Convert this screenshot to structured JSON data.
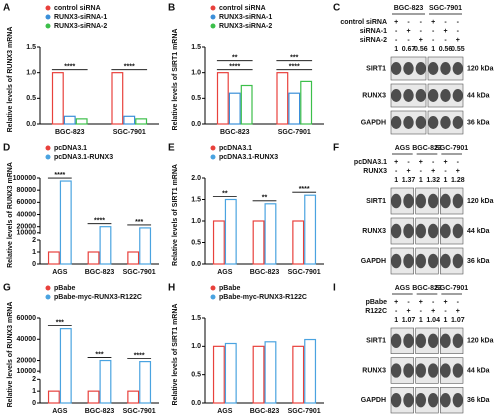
{
  "chart_data": [
    {
      "type": "bar",
      "panel": "A",
      "ylabel": "Relative levels of RUNX3 mRNA",
      "categories": [
        "BGC-823",
        "SGC-7901"
      ],
      "series": [
        {
          "name": "control siRNA",
          "color": "#e8413c",
          "values": [
            1,
            1
          ]
        },
        {
          "name": "RUNX3-siRNA-1",
          "color": "#3b8fd9",
          "values": [
            0.15,
            0.15
          ]
        },
        {
          "name": "RUNX3-siRNA-2",
          "color": "#3cbf4a",
          "values": [
            0.1,
            0.1
          ]
        }
      ],
      "ylim": [
        0,
        1.5
      ],
      "yticks": [
        {
          "value": 0,
          "label": "0.0"
        },
        0.5,
        {
          "value": 1,
          "label": "1.0"
        },
        1.5
      ],
      "annotations": [
        [
          "****"
        ],
        [
          "****"
        ]
      ]
    },
    {
      "type": "bar",
      "panel": "B",
      "ylabel": "Relative levels of SIRT1 mRNA",
      "categories": [
        "BGC-823",
        "SGC-7901"
      ],
      "series": [
        {
          "name": "control siRNA",
          "color": "#e8413c",
          "values": [
            1,
            1
          ]
        },
        {
          "name": "RUNX3-siRNA-1",
          "color": "#3b8fd9",
          "values": [
            0.6,
            0.6
          ]
        },
        {
          "name": "RUNX3-siRNA-2",
          "color": "#3cbf4a",
          "values": [
            0.75,
            0.83
          ]
        }
      ],
      "ylim": [
        0,
        1.5
      ],
      "yticks": [
        {
          "value": 0,
          "label": "0.0"
        },
        0.5,
        {
          "value": 1,
          "label": "1.0"
        },
        1.5
      ],
      "annotations": [
        [
          "**",
          "****"
        ],
        [
          "***",
          "****"
        ]
      ]
    },
    {
      "type": "bar",
      "panel": "D",
      "ylabel": "Relative levels of RUNX3 mRNA",
      "categories": [
        "AGS",
        "BGC-823",
        "SGC-7901"
      ],
      "series": [
        {
          "name": "pcDNA3.1",
          "color": "#e8413c",
          "values": [
            1,
            1,
            1
          ]
        },
        {
          "name": "pcDNA3.1-RUNX3",
          "color": "#4aa3e0",
          "values": [
            95000,
            20000,
            18000
          ]
        }
      ],
      "ylim_segments": [
        {
          "ylim": [
            0,
            2
          ],
          "yticks": [
            0,
            1,
            2
          ]
        },
        {
          "ylim": [
            8000,
            100000
          ],
          "yticks": [
            10000,
            20000,
            40000,
            60000,
            80000,
            100000
          ]
        }
      ],
      "annotations": [
        [
          "****"
        ],
        [
          "****"
        ],
        [
          "***"
        ]
      ]
    },
    {
      "type": "bar",
      "panel": "E",
      "ylabel": "Relative levels of SIRT1 mRNA",
      "categories": [
        "AGS",
        "BGC-823",
        "SGC-7901"
      ],
      "series": [
        {
          "name": "pcDNA3.1",
          "color": "#e8413c",
          "values": [
            1,
            1,
            1
          ]
        },
        {
          "name": "pcDNA3.1-RUNX3",
          "color": "#4aa3e0",
          "values": [
            1.5,
            1.4,
            1.6
          ]
        }
      ],
      "ylim": [
        0,
        2
      ],
      "yticks": [
        {
          "value": 0,
          "label": "0.0"
        },
        0.5,
        {
          "value": 1,
          "label": "1.0"
        },
        1.5,
        {
          "value": 2,
          "label": "2.0"
        }
      ],
      "annotations": [
        [
          "**"
        ],
        [
          "**"
        ],
        [
          "****"
        ]
      ]
    },
    {
      "type": "bar",
      "panel": "G",
      "ylabel": "Relative levels of RUNX3 mRNA",
      "categories": [
        "AGS",
        "BGC-823",
        "SGC-7901"
      ],
      "series": [
        {
          "name": "pBabe",
          "color": "#e8413c",
          "values": [
            1,
            1,
            1
          ]
        },
        {
          "name": "pBabe-myc-RUNX3-R122C",
          "color": "#4aa3e0",
          "values": [
            50000,
            20000,
            19000
          ]
        }
      ],
      "ylim_segments": [
        {
          "ylim": [
            0,
            2
          ],
          "yticks": [
            0,
            1,
            2
          ]
        },
        {
          "ylim": [
            8000,
            60000
          ],
          "yticks": [
            10000,
            20000,
            40000,
            60000
          ]
        }
      ],
      "annotations": [
        [
          "***"
        ],
        [
          "***"
        ],
        [
          "****"
        ]
      ]
    },
    {
      "type": "bar",
      "panel": "H",
      "ylabel": "Relative levels of SIRT1 mRNA",
      "categories": [
        "AGS",
        "BGC-823",
        "SGC-7901"
      ],
      "series": [
        {
          "name": "pBabe",
          "color": "#e8413c",
          "values": [
            1,
            1,
            1
          ]
        },
        {
          "name": "pBabe-myc-RUNX3-R122C",
          "color": "#4aa3e0",
          "values": [
            1.05,
            1.08,
            1.12
          ]
        }
      ],
      "ylim": [
        0,
        1.5
      ],
      "yticks": [
        {
          "value": 0,
          "label": "0.0"
        },
        0.5,
        {
          "value": 1,
          "label": "1.0"
        },
        1.5
      ]
    }
  ],
  "blots": [
    {
      "panel": "C",
      "groups": [
        "BGC-823",
        "SGC-7901"
      ],
      "conditions": [
        {
          "label": "control siRNA",
          "marks": [
            "+",
            "-",
            "-",
            "+",
            "-",
            "-"
          ]
        },
        {
          "label": "siRNA-1",
          "marks": [
            "-",
            "+",
            "-",
            "-",
            "+",
            "-"
          ]
        },
        {
          "label": "siRNA-2",
          "marks": [
            "-",
            "-",
            "+",
            "-",
            "-",
            "+"
          ]
        }
      ],
      "ratios": [
        1,
        0.67,
        0.56,
        1,
        0.56,
        0.55
      ],
      "bands": [
        {
          "name": "SIRT1",
          "size": "120 kDa"
        },
        {
          "name": "RUNX3",
          "size": "44 kDa"
        },
        {
          "name": "GAPDH",
          "size": "36 kDa"
        }
      ]
    },
    {
      "panel": "F",
      "groups": [
        "AGS",
        "BGC-823",
        "SGC-7901"
      ],
      "conditions": [
        {
          "label": "pcDNA3.1",
          "marks": [
            "+",
            "-",
            "+",
            "-",
            "+",
            "-"
          ]
        },
        {
          "label": "RUNX3",
          "marks": [
            "-",
            "+",
            "-",
            "+",
            "-",
            "+"
          ]
        }
      ],
      "ratios": [
        1,
        1.37,
        1,
        1.32,
        1,
        1.28
      ],
      "bands": [
        {
          "name": "SIRT1",
          "size": "120 kDa"
        },
        {
          "name": "RUNX3",
          "size": "44 kDa"
        },
        {
          "name": "GAPDH",
          "size": "36 kDa"
        }
      ]
    },
    {
      "panel": "I",
      "groups": [
        "AGS",
        "BGC-823",
        "SGC-7901"
      ],
      "conditions": [
        {
          "label": "pBabe",
          "marks": [
            "+",
            "-",
            "+",
            "-",
            "+",
            "-"
          ]
        },
        {
          "label": "R122C",
          "marks": [
            "-",
            "+",
            "-",
            "+",
            "-",
            "+"
          ]
        }
      ],
      "ratios": [
        1,
        1.07,
        1,
        1.04,
        1,
        1.07
      ],
      "bands": [
        {
          "name": "SIRT1",
          "size": "120 kDa"
        },
        {
          "name": "RUNX3",
          "size": "44 kDa"
        },
        {
          "name": "GAPDH",
          "size": "36 kDa"
        }
      ]
    }
  ]
}
